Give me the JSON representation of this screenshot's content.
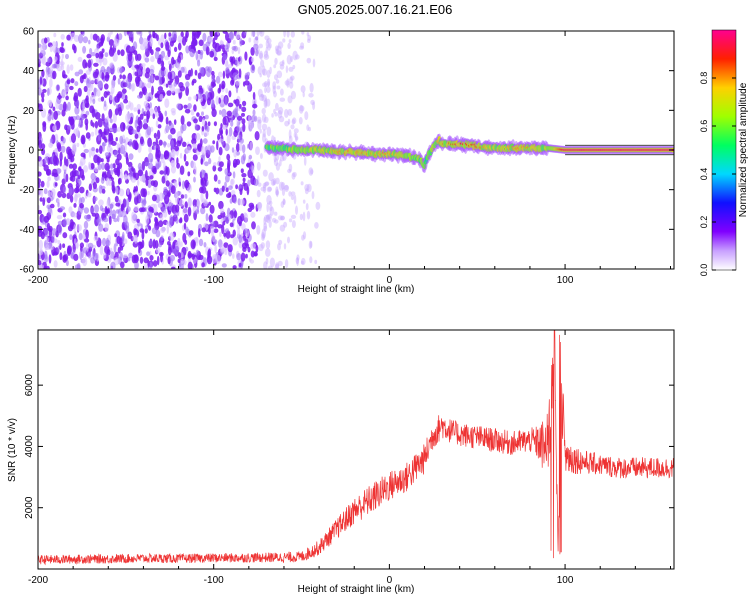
{
  "title": "GN05.2025.007.16.21.E06",
  "colors": {
    "signal_line": "#ee3333",
    "noise_dots": "#8a2be2",
    "colormap": [
      "#7a7a7a00",
      "#8a00ff",
      "#2020ff",
      "#00c8ff",
      "#00ff80",
      "#ffff00",
      "#ff8000",
      "#ff0000",
      "#ff00a0"
    ]
  },
  "chart_data": [
    {
      "type": "heatmap",
      "name": "spectrogram",
      "xlabel": "Height of straight line (km)",
      "ylabel": "Frequency (Hz)",
      "xlim": [
        -200,
        162
      ],
      "ylim": [
        -60,
        60
      ],
      "xticks": [
        "-200",
        "-100",
        "0",
        "100"
      ],
      "xtick_values": [
        -200,
        -100,
        0,
        100
      ],
      "yticks": [
        "-60",
        "-40",
        "-20",
        "0",
        "20",
        "40",
        "60"
      ],
      "ytick_values": [
        -60,
        -40,
        -20,
        0,
        20,
        40,
        60
      ],
      "colorbar": {
        "label": "Normalized spectral amplitude",
        "ticks": [
          "0.0",
          "0.2",
          "0.4",
          "0.6",
          "0.8"
        ],
        "tick_values": [
          0.0,
          0.2,
          0.4,
          0.6,
          0.8
        ],
        "range": [
          0,
          1
        ]
      },
      "noise_region_x": [
        -200,
        -40
      ],
      "signal_track": {
        "x": [
          -70,
          -60,
          -50,
          -40,
          -30,
          -20,
          -10,
          0,
          10,
          15,
          18,
          20,
          22,
          25,
          28,
          30,
          35,
          40,
          50,
          60,
          70,
          80,
          90,
          100,
          120,
          140,
          162
        ],
        "freq": [
          1,
          1,
          0,
          0,
          -1,
          -1,
          -2,
          -2,
          -3,
          -4,
          -5,
          -8,
          -3,
          2,
          5,
          3,
          3,
          3,
          2,
          1,
          1,
          1,
          1,
          0,
          0,
          0,
          0
        ],
        "amplitude": [
          0.4,
          0.5,
          0.7,
          0.75,
          0.8,
          0.8,
          0.8,
          0.8,
          0.7,
          0.6,
          0.5,
          0.4,
          0.5,
          0.6,
          0.8,
          0.8,
          0.85,
          0.9,
          0.85,
          0.7,
          0.8,
          0.8,
          0.6,
          0.95,
          0.95,
          0.95,
          0.95
        ]
      }
    },
    {
      "type": "line",
      "name": "snr",
      "xlabel": "Height of straight line (km)",
      "ylabel": "SNR (10 * v/v)",
      "xlim": [
        -200,
        162
      ],
      "ylim": [
        0,
        7800
      ],
      "xticks": [
        "-200",
        "-100",
        "0",
        "100"
      ],
      "xtick_values": [
        -200,
        -100,
        0,
        100
      ],
      "yticks": [
        "2000",
        "4000",
        "6000"
      ],
      "ytick_values": [
        2000,
        4000,
        6000
      ],
      "series": [
        {
          "x": [
            -200,
            -180,
            -160,
            -140,
            -120,
            -100,
            -80,
            -60,
            -50,
            -40,
            -30,
            -20,
            -10,
            0,
            10,
            20,
            25,
            30,
            35,
            40,
            50,
            60,
            70,
            80,
            85,
            90,
            92,
            94,
            96,
            98,
            100,
            105,
            110,
            120,
            130,
            140,
            150,
            162
          ],
          "y": [
            300,
            320,
            330,
            350,
            340,
            360,
            370,
            380,
            400,
            700,
            1300,
            1900,
            2300,
            2700,
            3000,
            3600,
            4400,
            4700,
            4500,
            4400,
            4300,
            4200,
            4100,
            4200,
            4100,
            3900,
            5000,
            7600,
            300,
            6000,
            3700,
            3600,
            3500,
            3400,
            3300,
            3300,
            3300,
            3300
          ],
          "noise": [
            150,
            150,
            150,
            150,
            150,
            150,
            160,
            170,
            180,
            250,
            350,
            450,
            500,
            500,
            500,
            500,
            500,
            450,
            400,
            400,
            400,
            400,
            400,
            400,
            600,
            1200,
            1500,
            800,
            600,
            1200,
            700,
            500,
            400,
            350,
            350,
            350,
            350,
            350
          ]
        }
      ]
    }
  ]
}
